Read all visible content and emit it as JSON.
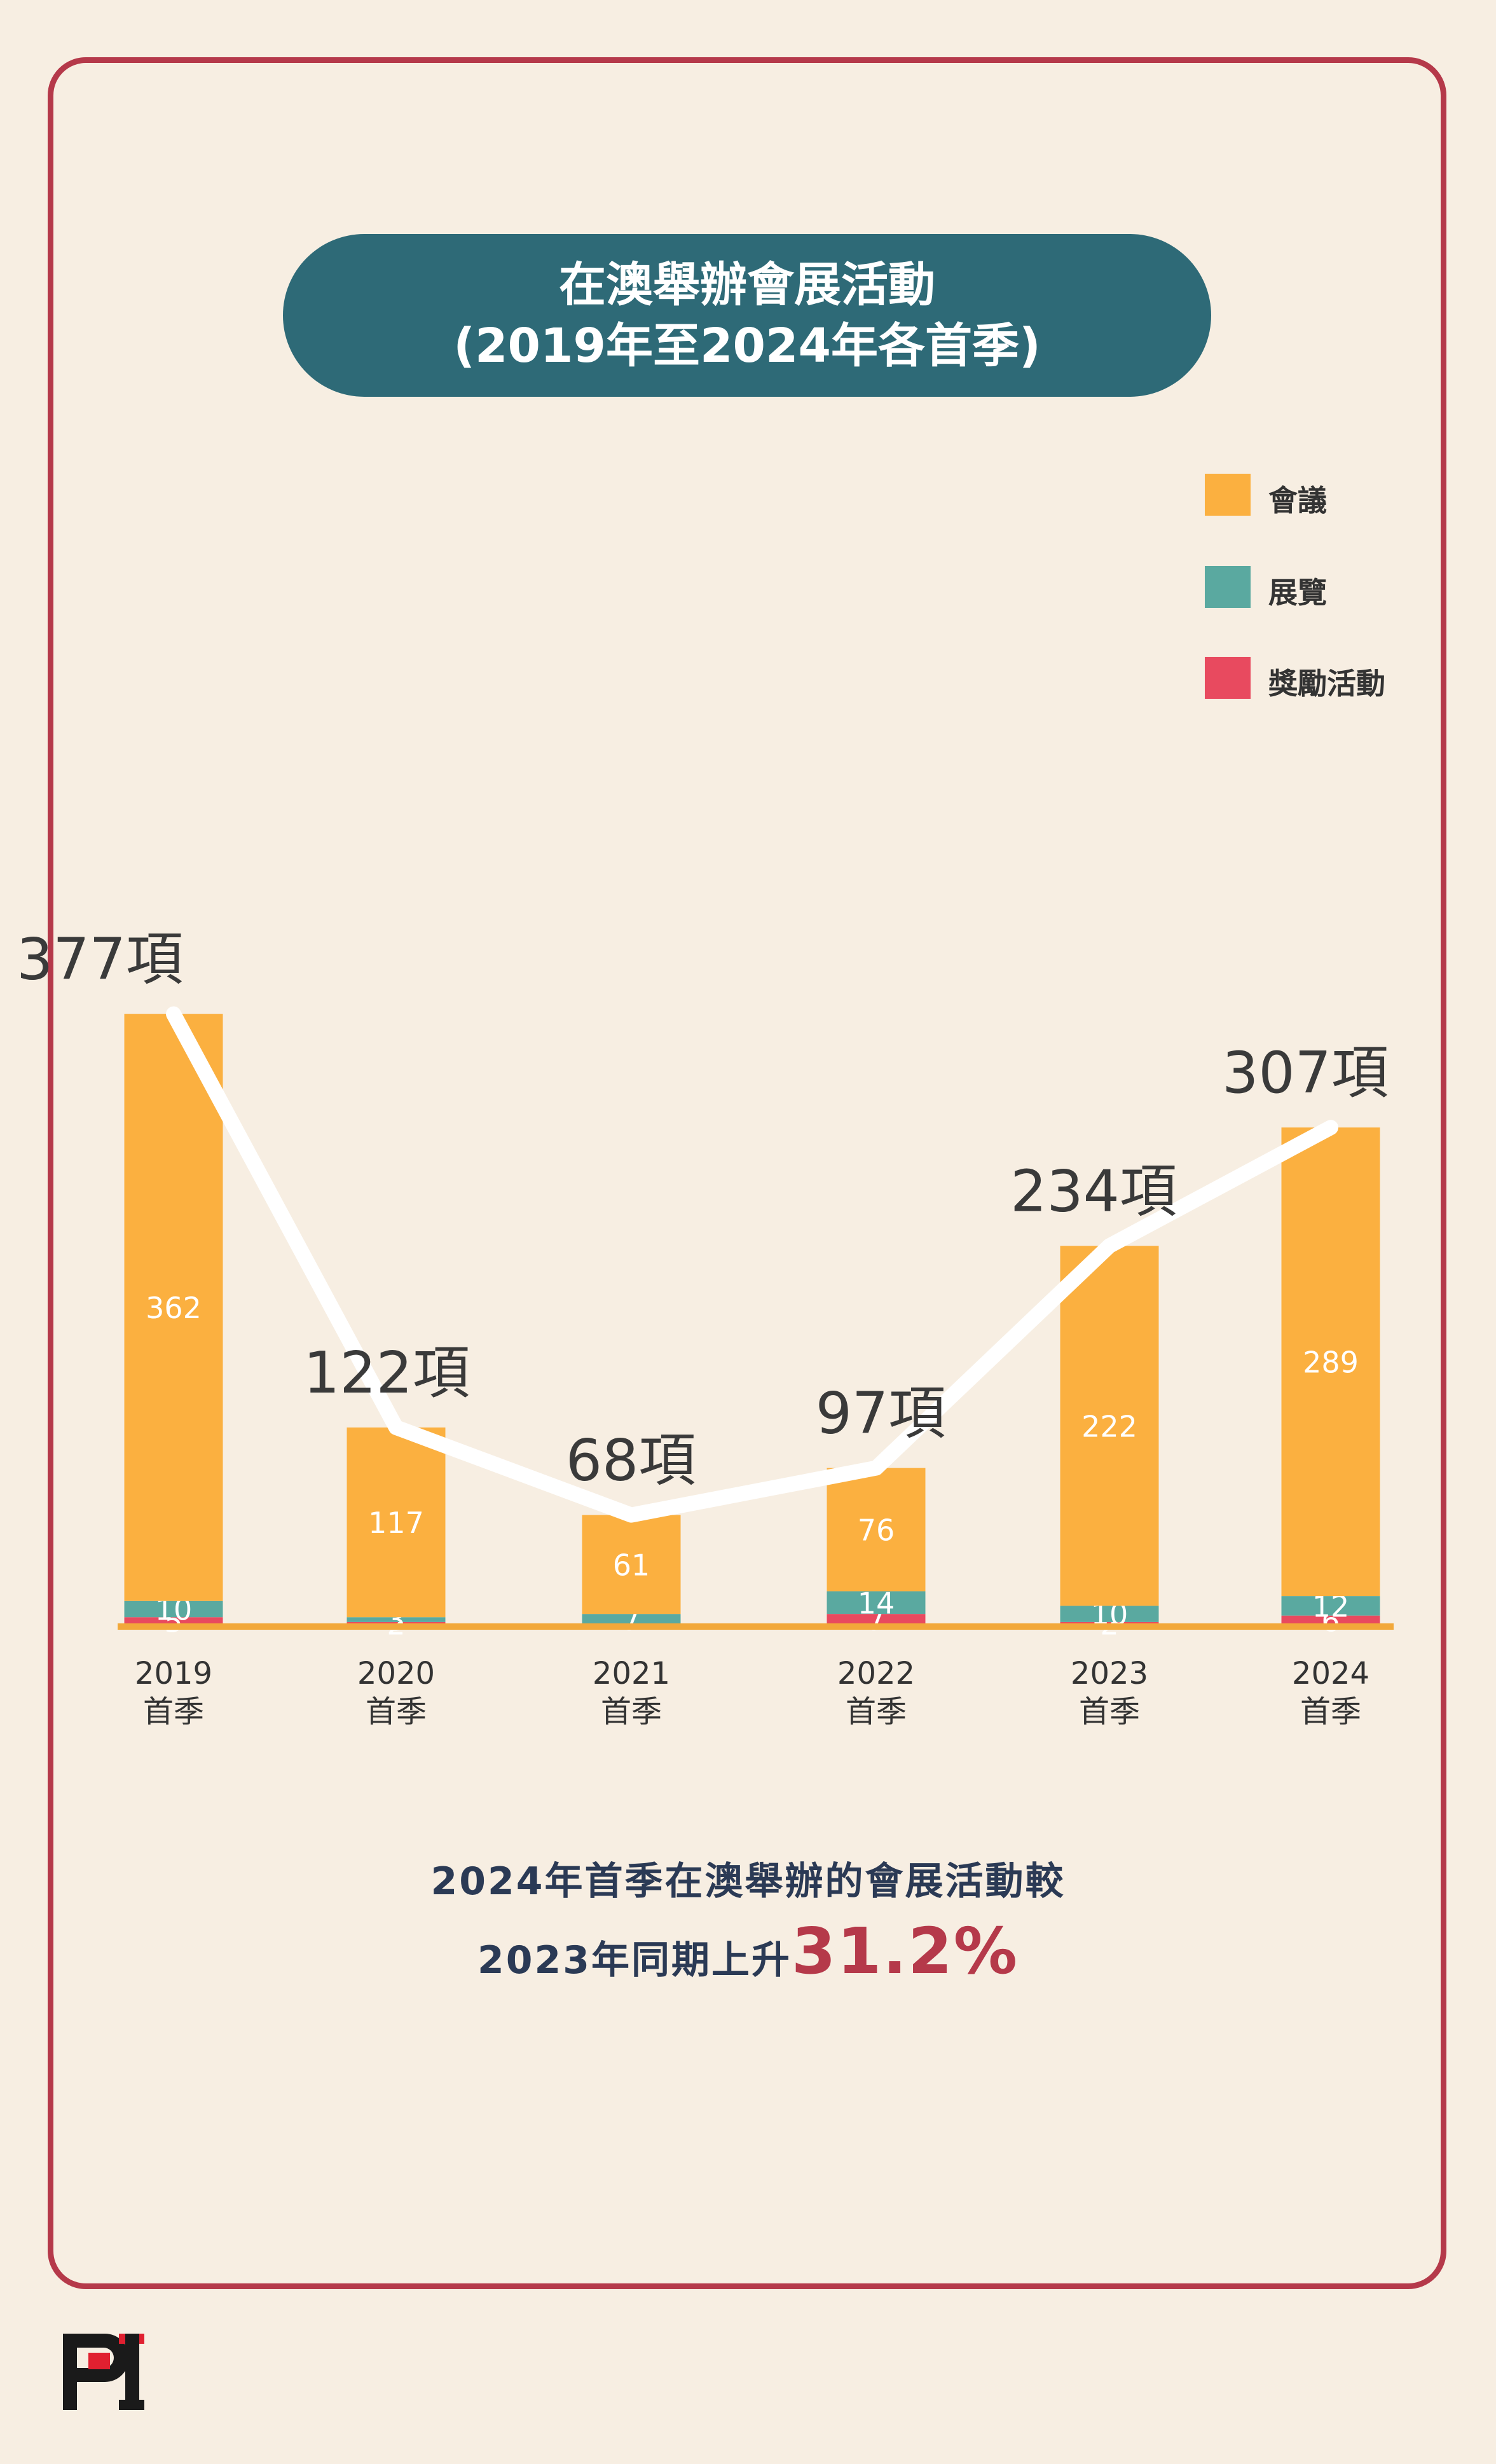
{
  "title": {
    "line1": "在澳舉辦會展活動",
    "line2": "(2019年至2024年各首季)"
  },
  "chart_data": {
    "type": "bar",
    "stacked": true,
    "categories": [
      "2019",
      "2020",
      "2021",
      "2022",
      "2023",
      "2024"
    ],
    "category_sublabel": "首季",
    "totals": [
      377,
      122,
      68,
      97,
      234,
      307
    ],
    "total_suffix": "項",
    "series": [
      {
        "name": "獎勵活動",
        "color": "#e84a5f",
        "values": [
          5,
          2,
          0,
          7,
          2,
          6
        ]
      },
      {
        "name": "展覽",
        "color": "#5aa9a0",
        "values": [
          10,
          3,
          7,
          14,
          10,
          12
        ]
      },
      {
        "name": "會議",
        "color": "#fbb040",
        "values": [
          362,
          117,
          61,
          76,
          222,
          289
        ]
      }
    ],
    "legend_order": [
      "會議",
      "展覽",
      "獎勵活動"
    ],
    "legend_position": "top-right",
    "trend_line": true,
    "grid": false,
    "xlabel": "",
    "ylabel": ""
  },
  "colors": {
    "background": "#f7eee2",
    "frame": "#b5394a",
    "title_pill": "#2e6a77",
    "baseline": "#f2a83a",
    "trend": "#ffffff",
    "total_label": "#3a3a3a",
    "note_text": "#2b3a55",
    "highlight": "#b5394a"
  },
  "note": {
    "line1": "2024年首季在澳舉辦的會展活動較",
    "line2_prefix": "2023年同期上升",
    "line2_highlight": "31.2%"
  },
  "logo": {
    "icon": "pi-logo-icon"
  }
}
